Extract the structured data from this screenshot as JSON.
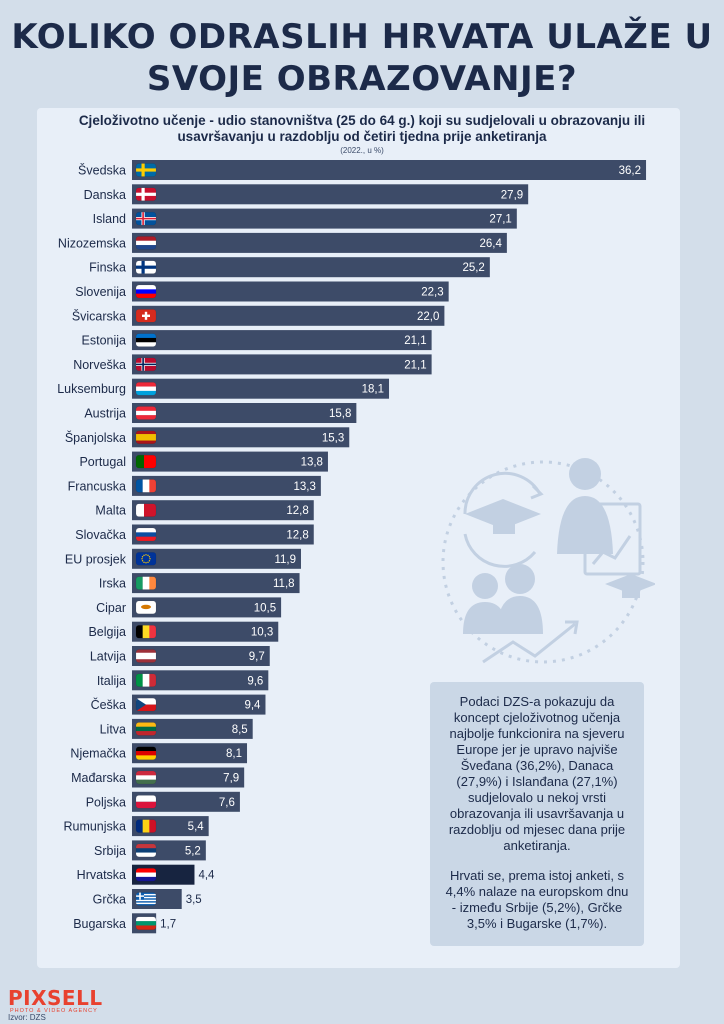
{
  "title": "KOLIKO ODRASLIH HRVATA ULAŽE U SVOJE OBRAZOVANJE?",
  "logo": "PIXSELL",
  "logo_sub": "PHOTO & VIDEO AGENCY",
  "source": "Izvor: DZS",
  "note": {
    "p1": "Podaci DZS-a pokazuju da koncept cjeloživotnog učenja najbolje funkcionira na sjeveru Europe jer je upravo najviše Šveđana (36,2%), Danaca (27,9%) i Islanđana (27,1%) sudjelovalo u nekoj vrsti obrazovanja ili usavršavanja u razdoblju od mjesec dana prije anketiranja.",
    "p2": "Hrvati se, prema istoj anketi, s 4,4% nalaze na europskom dnu - između Srbije (5,2%), Grčke 3,5% i Bugarske (1,7%)."
  },
  "colors": {
    "bar": "#3d4b68",
    "highlight": "#172440",
    "background": "#d3deea",
    "panel": "#e8eff8"
  },
  "chart_data": {
    "type": "bar",
    "orientation": "horizontal",
    "title": "Cjeloživotno učenje - udio stanovništva (25 do 64 g.) koji su sudjelovali u obrazovanju ili usavršavanju u razdoblju od četiri tjedna prije anketiranja",
    "unit": "(2022., u %)",
    "categories": [
      "Švedska",
      "Danska",
      "Island",
      "Nizozemska",
      "Finska",
      "Slovenija",
      "Švicarska",
      "Estonija",
      "Norveška",
      "Luksemburg",
      "Austrija",
      "Španjolska",
      "Portugal",
      "Francuska",
      "Malta",
      "Slovačka",
      "EU prosjek",
      "Irska",
      "Cipar",
      "Belgija",
      "Latvija",
      "Italija",
      "Češka",
      "Litva",
      "Njemačka",
      "Mađarska",
      "Poljska",
      "Rumunjska",
      "Srbija",
      "Hrvatska",
      "Grčka",
      "Bugarska"
    ],
    "values": [
      36.2,
      27.9,
      27.1,
      26.4,
      25.2,
      22.3,
      22.0,
      21.1,
      21.1,
      18.1,
      15.8,
      15.3,
      13.8,
      13.3,
      12.8,
      12.8,
      11.9,
      11.8,
      10.5,
      10.3,
      9.7,
      9.6,
      9.4,
      8.5,
      8.1,
      7.9,
      7.6,
      5.4,
      5.2,
      4.4,
      3.5,
      1.7
    ],
    "value_labels": [
      "36,2",
      "27,9",
      "27,1",
      "26,4",
      "25,2",
      "22,3",
      "22,0",
      "21,1",
      "21,1",
      "18,1",
      "15,8",
      "15,3",
      "13,8",
      "13,3",
      "12,8",
      "12,8",
      "11,9",
      "11,8",
      "10,5",
      "10,3",
      "9,7",
      "9,6",
      "9,4",
      "8,5",
      "8,1",
      "7,9",
      "7,6",
      "5,4",
      "5,2",
      "4,4",
      "3,5",
      "1,7"
    ],
    "highlight": "Hrvatska",
    "flags": [
      {
        "type": "nordic",
        "bg": "#006aa7",
        "cross": "#fecc00"
      },
      {
        "type": "nordic",
        "bg": "#c8102e",
        "cross": "#ffffff"
      },
      {
        "type": "nordic2",
        "bg": "#02529c",
        "cross": "#ffffff",
        "inner": "#dc1e35"
      },
      {
        "type": "h3",
        "c": [
          "#ae1c28",
          "#ffffff",
          "#21468b"
        ]
      },
      {
        "type": "nordic",
        "bg": "#ffffff",
        "cross": "#003580"
      },
      {
        "type": "h3",
        "c": [
          "#ffffff",
          "#0000ff",
          "#ff0000"
        ]
      },
      {
        "type": "swiss",
        "bg": "#d52b1e",
        "cross": "#ffffff"
      },
      {
        "type": "h3",
        "c": [
          "#0072ce",
          "#000000",
          "#ffffff"
        ]
      },
      {
        "type": "nordic2",
        "bg": "#ba0c2f",
        "cross": "#ffffff",
        "inner": "#00205b"
      },
      {
        "type": "h3",
        "c": [
          "#ed2939",
          "#ffffff",
          "#00a1de"
        ]
      },
      {
        "type": "h3",
        "c": [
          "#ed2939",
          "#ffffff",
          "#ed2939"
        ]
      },
      {
        "type": "h3w",
        "c": [
          "#aa151b",
          "#f1bf00",
          "#aa151b"
        ]
      },
      {
        "type": "v2",
        "c": [
          "#006600",
          "#ff0000"
        ]
      },
      {
        "type": "v3",
        "c": [
          "#0055a4",
          "#ffffff",
          "#ef4135"
        ]
      },
      {
        "type": "v2",
        "c": [
          "#ffffff",
          "#cf142b"
        ]
      },
      {
        "type": "h3",
        "c": [
          "#ffffff",
          "#0b4ea2",
          "#ee1c25"
        ]
      },
      {
        "type": "eu",
        "bg": "#003399",
        "star": "#ffcc00"
      },
      {
        "type": "v3",
        "c": [
          "#169b62",
          "#ffffff",
          "#ff883e"
        ]
      },
      {
        "type": "cyprus",
        "bg": "#ffffff",
        "fg": "#d57800"
      },
      {
        "type": "v3",
        "c": [
          "#000000",
          "#fdda24",
          "#ef3340"
        ]
      },
      {
        "type": "h3w",
        "c": [
          "#9e3039",
          "#ffffff",
          "#9e3039"
        ]
      },
      {
        "type": "v3",
        "c": [
          "#009246",
          "#ffffff",
          "#ce2b37"
        ]
      },
      {
        "type": "czech",
        "c": [
          "#ffffff",
          "#d7141a",
          "#11457e"
        ]
      },
      {
        "type": "h3",
        "c": [
          "#fdb913",
          "#006a44",
          "#c1272d"
        ]
      },
      {
        "type": "h3",
        "c": [
          "#000000",
          "#dd0000",
          "#ffce00"
        ]
      },
      {
        "type": "h3",
        "c": [
          "#cd2a3e",
          "#ffffff",
          "#436f4d"
        ]
      },
      {
        "type": "h2",
        "c": [
          "#ffffff",
          "#dc143c"
        ]
      },
      {
        "type": "v3",
        "c": [
          "#002b7f",
          "#fcd116",
          "#ce1126"
        ]
      },
      {
        "type": "h3",
        "c": [
          "#c6363c",
          "#0c4076",
          "#ffffff"
        ]
      },
      {
        "type": "h3",
        "c": [
          "#ff0000",
          "#ffffff",
          "#171796"
        ]
      },
      {
        "type": "greece",
        "bg": "#0d5eaf",
        "fg": "#ffffff"
      },
      {
        "type": "h3",
        "c": [
          "#ffffff",
          "#00966e",
          "#d62612"
        ]
      }
    ]
  }
}
